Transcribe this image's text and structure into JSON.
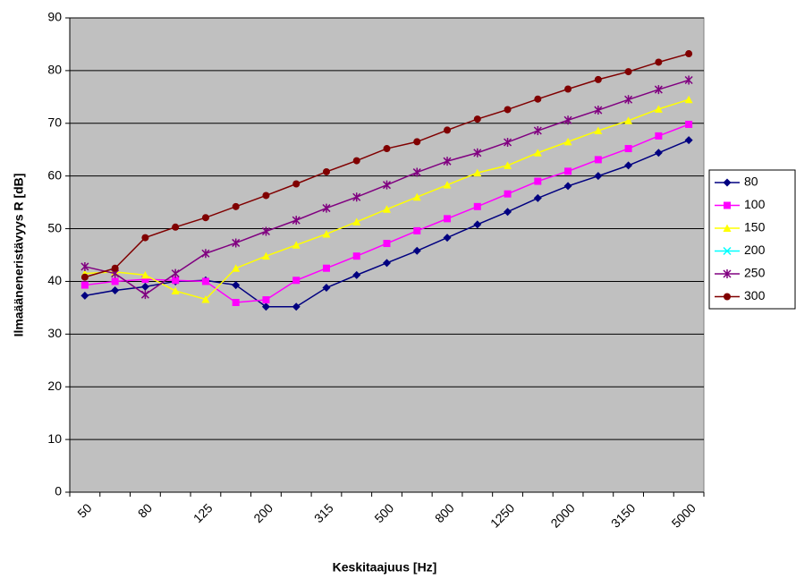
{
  "chart_data": {
    "type": "line",
    "x_label": "Keskitaajuus [Hz]",
    "y_label": "Ilmaääneneristävyys R [dB]",
    "categories": [
      "50",
      null,
      "80",
      null,
      "125",
      null,
      "200",
      null,
      "315",
      null,
      "500",
      null,
      "800",
      null,
      "1250",
      null,
      "2000",
      null,
      "3150",
      null,
      "5000"
    ],
    "series": [
      {
        "name": "80",
        "color": "#000080",
        "marker": "diamond",
        "values": [
          37.3,
          38.3,
          39,
          40,
          40.2,
          39.3,
          35.2,
          35.2,
          38.8,
          41.2,
          43.5,
          45.8,
          48.3,
          50.8,
          53.2,
          55.8,
          58.1,
          60,
          62,
          64.4,
          66.8
        ]
      },
      {
        "name": "100",
        "color": "#ff00ff",
        "marker": "square",
        "values": [
          39.3,
          40,
          40.4,
          40.2,
          40,
          36,
          36.5,
          40.2,
          42.5,
          44.8,
          47.2,
          49.6,
          51.9,
          54.2,
          56.6,
          59,
          60.9,
          63.1,
          65.2,
          67.6,
          69.8
        ]
      },
      {
        "name": "150",
        "color": "#ffff00",
        "marker": "triangle",
        "values": [
          41.5,
          41.8,
          41.2,
          38.2,
          36.6,
          42.5,
          44.8,
          46.9,
          49,
          51.3,
          53.7,
          56,
          58.3,
          60.6,
          62,
          64.4,
          66.5,
          68.6,
          70.5,
          72.7,
          74.5
        ]
      },
      {
        "name": "200",
        "color": "#00ffff",
        "marker": "x",
        "values": [
          null,
          null,
          null,
          null,
          null,
          null,
          null,
          null,
          null,
          null,
          null,
          null,
          null,
          null,
          null,
          null,
          null,
          null,
          null,
          null,
          null
        ]
      },
      {
        "name": "250",
        "color": "#800080",
        "marker": "asterisk",
        "values": [
          42.8,
          41.5,
          37.5,
          41.5,
          45.3,
          47.3,
          49.5,
          51.6,
          53.9,
          56,
          58.3,
          60.7,
          62.8,
          64.4,
          66.4,
          68.6,
          70.6,
          72.5,
          74.5,
          76.4,
          78.2
        ]
      },
      {
        "name": "300",
        "color": "#800000",
        "marker": "circle",
        "values": [
          40.8,
          42.5,
          48.3,
          50.3,
          52.1,
          54.2,
          56.3,
          58.5,
          60.8,
          62.9,
          65.2,
          66.5,
          68.7,
          70.8,
          72.6,
          74.6,
          76.5,
          78.3,
          79.8,
          81.6,
          83.2
        ]
      }
    ],
    "ylim": [
      0,
      90
    ],
    "yticks": [
      0,
      10,
      20,
      30,
      40,
      50,
      60,
      70,
      80,
      90
    ],
    "grid": true,
    "legend": "right",
    "plot_background": "#c0c0c0"
  }
}
